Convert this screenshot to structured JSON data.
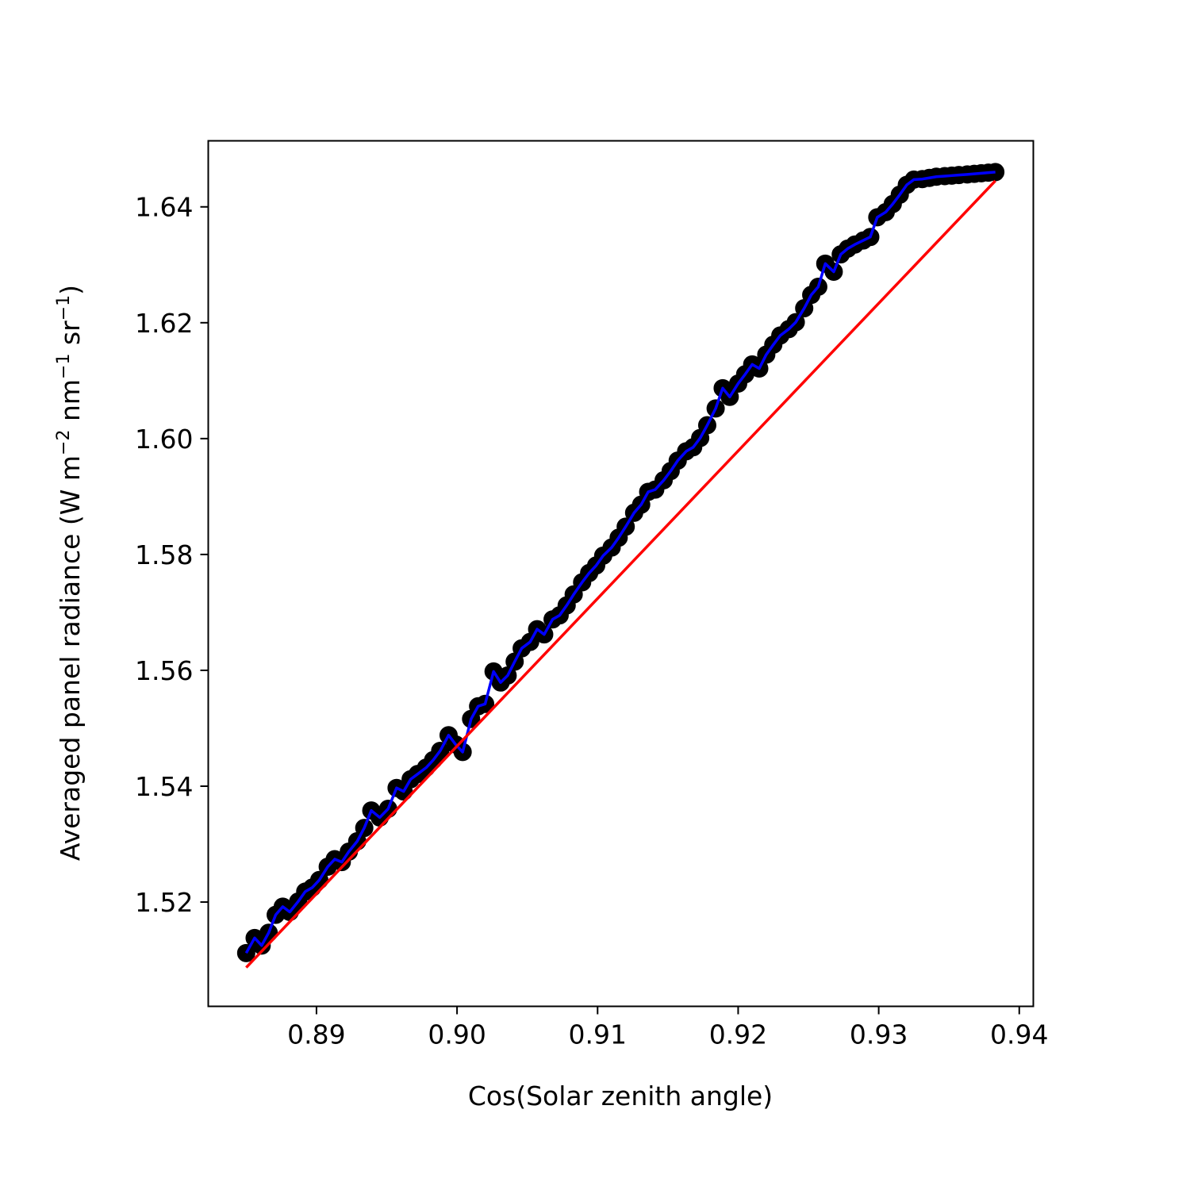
{
  "chart_data": {
    "type": "scatter",
    "title": "",
    "xlabel": "Cos(Solar zenith angle)",
    "ylabel": {
      "prefix": "Averaged panel radiance (W m",
      "exp1": "−2",
      "mid1": " nm",
      "exp2": "−1",
      "mid2": " sr",
      "exp3": "−1",
      "suffix": ")"
    },
    "xlim": [
      0.8823,
      0.941
    ],
    "ylim": [
      1.502,
      1.6514
    ],
    "xticks": [
      0.89,
      0.9,
      0.91,
      0.92,
      0.93,
      0.94
    ],
    "xtick_labels": [
      "0.89",
      "0.90",
      "0.91",
      "0.92",
      "0.93",
      "0.94"
    ],
    "yticks": [
      1.52,
      1.54,
      1.56,
      1.58,
      1.6,
      1.62,
      1.64
    ],
    "ytick_labels": [
      "1.52",
      "1.54",
      "1.56",
      "1.58",
      "1.60",
      "1.62",
      "1.64"
    ],
    "grid": false,
    "colors": {
      "markers": "#000000",
      "series_line": "#0000ff",
      "fit_line": "#ff0000"
    },
    "series": [
      {
        "style": "markers-with-line",
        "x": [
          0.885,
          0.8856,
          0.8861,
          0.8866,
          0.8871,
          0.8876,
          0.8881,
          0.8887,
          0.8892,
          0.8897,
          0.8902,
          0.8908,
          0.8913,
          0.8918,
          0.8923,
          0.8929,
          0.8934,
          0.8939,
          0.8945,
          0.8951,
          0.8957,
          0.8962,
          0.8967,
          0.8972,
          0.8978,
          0.8983,
          0.8988,
          0.8994,
          0.8999,
          0.9004,
          0.901,
          0.9015,
          0.902,
          0.9026,
          0.9031,
          0.9036,
          0.9041,
          0.9046,
          0.9052,
          0.9057,
          0.9062,
          0.9068,
          0.9073,
          0.9078,
          0.9083,
          0.9089,
          0.9094,
          0.9099,
          0.9104,
          0.911,
          0.9115,
          0.912,
          0.9126,
          0.9131,
          0.9136,
          0.9141,
          0.9147,
          0.9152,
          0.9157,
          0.9163,
          0.9168,
          0.9173,
          0.9178,
          0.9184,
          0.9189,
          0.9194,
          0.92,
          0.9205,
          0.921,
          0.9215,
          0.922,
          0.9225,
          0.923,
          0.9236,
          0.9241,
          0.9247,
          0.9252,
          0.9257,
          0.9262,
          0.9268,
          0.9273,
          0.9278,
          0.9283,
          0.9289,
          0.9294,
          0.9299,
          0.9305,
          0.931,
          0.9315,
          0.932,
          0.9325,
          0.9331,
          0.9336,
          0.9341,
          0.9347,
          0.9352,
          0.9357,
          0.9363,
          0.9368,
          0.9373,
          0.9378,
          0.9383
        ],
        "y": [
          1.5112,
          1.5138,
          1.5125,
          1.5147,
          1.5178,
          1.5192,
          1.5183,
          1.5201,
          1.5218,
          1.5225,
          1.5238,
          1.5261,
          1.5274,
          1.5269,
          1.5287,
          1.5305,
          1.5328,
          1.5358,
          1.5346,
          1.5361,
          1.5397,
          1.5391,
          1.5412,
          1.5421,
          1.5432,
          1.5445,
          1.5461,
          1.5488,
          1.5472,
          1.5459,
          1.5516,
          1.5538,
          1.5542,
          1.5598,
          1.5579,
          1.5591,
          1.5615,
          1.5638,
          1.5649,
          1.5671,
          1.5662,
          1.5688,
          1.5695,
          1.5712,
          1.5731,
          1.5752,
          1.5768,
          1.5781,
          1.5798,
          1.5812,
          1.5829,
          1.5848,
          1.5872,
          1.5886,
          1.5908,
          1.5912,
          1.5928,
          1.5944,
          1.5962,
          1.5978,
          1.5985,
          1.6001,
          1.6023,
          1.6052,
          1.6087,
          1.6072,
          1.6095,
          1.6111,
          1.6128,
          1.6121,
          1.6145,
          1.6162,
          1.6178,
          1.6189,
          1.6201,
          1.6225,
          1.6248,
          1.6262,
          1.6302,
          1.6288,
          1.6318,
          1.6328,
          1.6335,
          1.6342,
          1.6348,
          1.6382,
          1.6391,
          1.6405,
          1.6421,
          1.6438,
          1.6447,
          1.6448,
          1.645,
          1.6452,
          1.6453,
          1.6454,
          1.6455,
          1.6456,
          1.6457,
          1.6458,
          1.6459,
          1.646
        ]
      },
      {
        "style": "line",
        "x": [
          0.885,
          0.9383
        ],
        "y": [
          1.5087,
          1.6445
        ]
      }
    ]
  }
}
